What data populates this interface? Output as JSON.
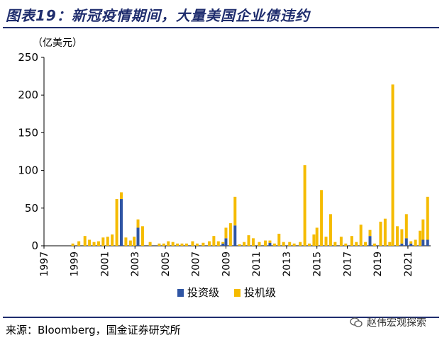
{
  "title": "图表19：新冠疫情期间，大量美国企业债违约",
  "unit": "（亿美元）",
  "source": "来源：Bloomberg，国金证券研究所",
  "watermark": "赵伟宏观探索",
  "colors": {
    "invest": "#2f55a4",
    "spec": "#f5bb00",
    "title": "#1f2d6e"
  },
  "chart_data": {
    "type": "bar",
    "stacked": true,
    "title": "",
    "xlabel": "",
    "ylabel": "（亿美元）",
    "ylim": [
      0,
      250
    ],
    "yticks": [
      0,
      50,
      100,
      150,
      200,
      250
    ],
    "xlim": [
      1997,
      2022.5
    ],
    "xticks": [
      "1997",
      "1999",
      "2001",
      "2003",
      "2005",
      "2007",
      "2009",
      "2011",
      "2013",
      "2015",
      "2017",
      "2019",
      "2021"
    ],
    "legend_position": "bottom",
    "series": [
      {
        "name": "投资级",
        "key": "ig"
      },
      {
        "name": "投机级",
        "key": "hy"
      }
    ],
    "x": [
      1998.9,
      1999.3,
      1999.7,
      2000.0,
      2000.3,
      2000.6,
      2000.9,
      2001.2,
      2001.5,
      2001.8,
      2002.1,
      2002.4,
      2002.7,
      2002.95,
      2003.2,
      2003.5,
      2004.0,
      2004.6,
      2004.9,
      2005.2,
      2005.5,
      2005.8,
      2006.1,
      2006.4,
      2006.8,
      2007.1,
      2007.5,
      2007.9,
      2008.2,
      2008.5,
      2008.8,
      2009.0,
      2009.3,
      2009.6,
      2009.9,
      2010.2,
      2010.5,
      2010.8,
      2011.2,
      2011.6,
      2011.9,
      2012.2,
      2012.5,
      2012.8,
      2013.2,
      2013.5,
      2013.9,
      2014.2,
      2014.5,
      2014.8,
      2015.0,
      2015.3,
      2015.6,
      2015.9,
      2016.2,
      2016.6,
      2016.9,
      2017.3,
      2017.6,
      2017.9,
      2018.2,
      2018.5,
      2018.8,
      2019.2,
      2019.5,
      2019.8,
      2020.0,
      2020.3,
      2020.6,
      2020.9,
      2021.2,
      2021.5,
      2021.8,
      2022.0,
      2022.3
    ],
    "ig": [
      0,
      0,
      0,
      0,
      0,
      0,
      0,
      0,
      0,
      0,
      62,
      0,
      0,
      0,
      24,
      0,
      0,
      0,
      0,
      0,
      0,
      0,
      0,
      0,
      0,
      0,
      0,
      0,
      0,
      0,
      3,
      10,
      0,
      27,
      0,
      0,
      0,
      0,
      0,
      0,
      4,
      0,
      0,
      0,
      0,
      0,
      0,
      0,
      0,
      0,
      0,
      0,
      0,
      0,
      0,
      0,
      0,
      0,
      0,
      0,
      0,
      13,
      0,
      0,
      0,
      0,
      0,
      0,
      3,
      10,
      3,
      0,
      0,
      8,
      8
    ],
    "hy": [
      3,
      6,
      13,
      8,
      5,
      6,
      11,
      12,
      15,
      62,
      9,
      11,
      7,
      12,
      11,
      26,
      5,
      3,
      3,
      6,
      5,
      3,
      3,
      3,
      6,
      3,
      4,
      6,
      13,
      6,
      2,
      14,
      30,
      38,
      2,
      5,
      14,
      10,
      5,
      7,
      3,
      3,
      16,
      5,
      5,
      3,
      5,
      107,
      3,
      15,
      24,
      74,
      12,
      42,
      5,
      12,
      3,
      13,
      5,
      28,
      5,
      8,
      3,
      32,
      36,
      5,
      214,
      26,
      19,
      32,
      3,
      8,
      20,
      27,
      57
    ]
  },
  "legend": [
    {
      "label": "投资级",
      "key": "ig"
    },
    {
      "label": "投机级",
      "key": "hy"
    }
  ]
}
